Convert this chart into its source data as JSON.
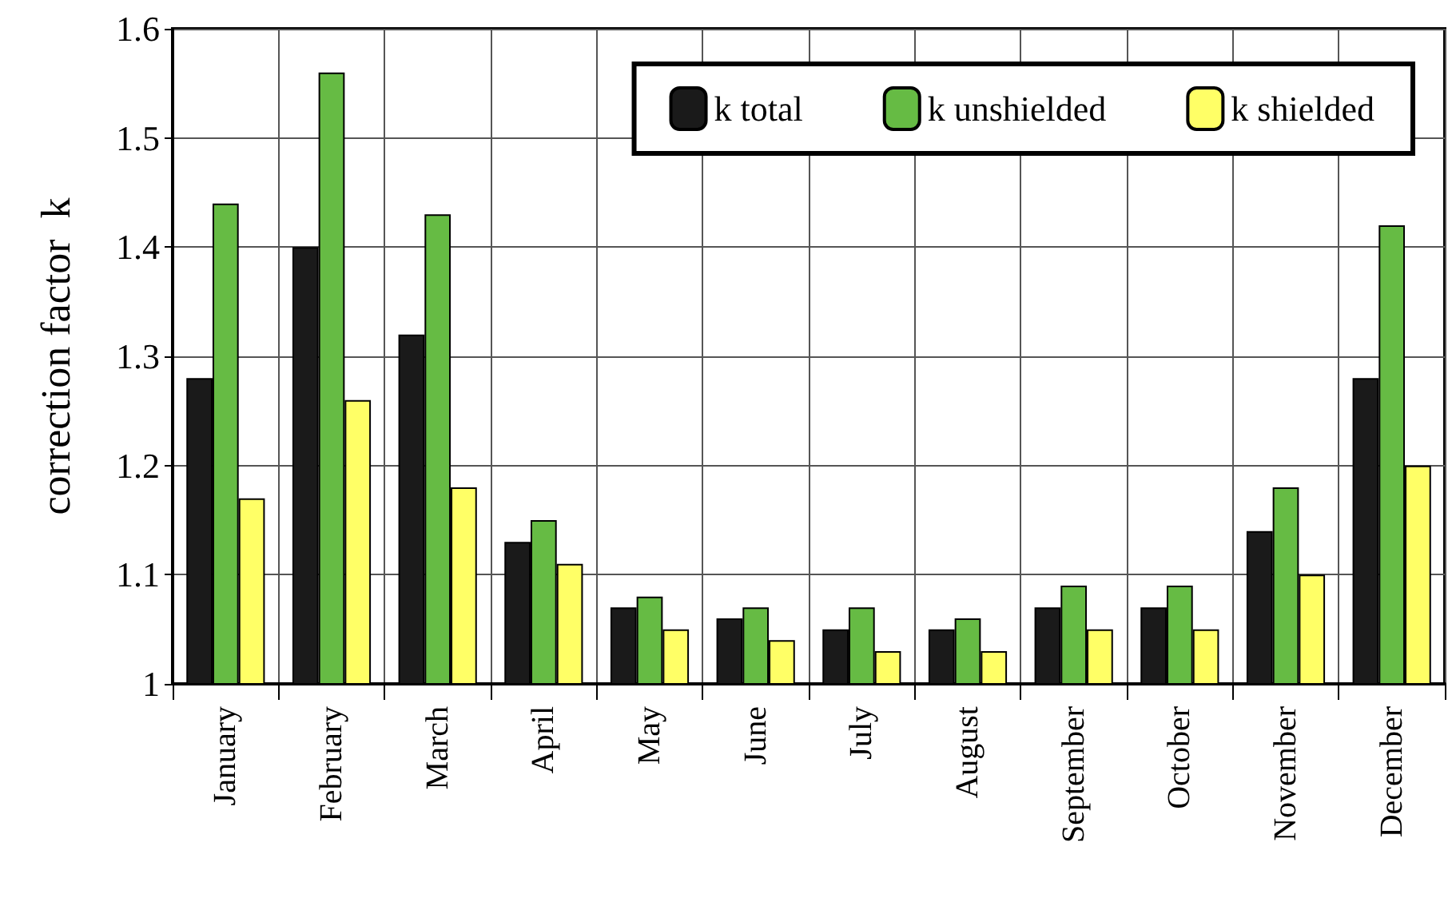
{
  "chart_data": {
    "type": "bar",
    "ylabel": "correction factor  k",
    "categories": [
      "January",
      "February",
      "March",
      "April",
      "May",
      "June",
      "July",
      "August",
      "September",
      "October",
      "November",
      "December"
    ],
    "series": [
      {
        "name": "k total",
        "color": "#1a1a1a",
        "values": [
          1.28,
          1.4,
          1.32,
          1.13,
          1.07,
          1.06,
          1.05,
          1.05,
          1.07,
          1.07,
          1.14,
          1.28
        ]
      },
      {
        "name": "k unshielded",
        "color": "#66bb44",
        "values": [
          1.44,
          1.56,
          1.43,
          1.15,
          1.08,
          1.07,
          1.07,
          1.06,
          1.09,
          1.09,
          1.18,
          1.42
        ]
      },
      {
        "name": "k shielded",
        "color": "#ffff66",
        "values": [
          1.17,
          1.26,
          1.18,
          1.11,
          1.05,
          1.04,
          1.03,
          1.03,
          1.05,
          1.05,
          1.1,
          1.2
        ]
      }
    ],
    "ylim": [
      1,
      1.6
    ],
    "yticks": [
      1,
      1.1,
      1.2,
      1.3,
      1.4,
      1.5,
      1.6
    ],
    "grid": true,
    "legend": "top right"
  }
}
